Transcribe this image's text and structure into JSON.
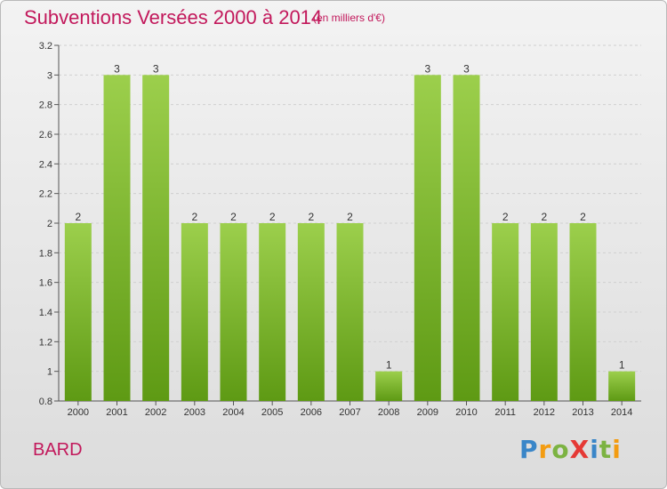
{
  "title": "Subventions Versées 2000 à 2014",
  "subtitle": "(en milliers d'€)",
  "place": "BARD",
  "logo": {
    "text": "ProXiti",
    "letters": [
      {
        "ch": "P",
        "color": "#3a86c8"
      },
      {
        "ch": "r",
        "color": "#f39c12"
      },
      {
        "ch": "o",
        "color": "#7cb342"
      },
      {
        "ch": "X",
        "color": "#e53935"
      },
      {
        "ch": "i",
        "color": "#3a86c8"
      },
      {
        "ch": "t",
        "color": "#7cb342"
      },
      {
        "ch": "i",
        "color": "#f39c12"
      }
    ]
  },
  "colors": {
    "title": "#c2185b",
    "bar_light": "#9ccf4c",
    "bar_dark": "#5e9a14",
    "grid": "#cfcfcf",
    "axis_text": "#333333"
  },
  "chart_data": {
    "type": "bar",
    "title": "Subventions Versées 2000 à 2014",
    "xlabel": "",
    "ylabel": "",
    "categories": [
      "2000",
      "2001",
      "2002",
      "2003",
      "2004",
      "2005",
      "2006",
      "2007",
      "2008",
      "2009",
      "2010",
      "2011",
      "2012",
      "2013",
      "2014"
    ],
    "values": [
      2,
      3,
      3,
      2,
      2,
      2,
      2,
      2,
      1,
      3,
      3,
      2,
      2,
      2,
      1
    ],
    "data_labels": [
      "2",
      "3",
      "3",
      "2",
      "2",
      "2",
      "2",
      "2",
      "1",
      "3",
      "3",
      "2",
      "2",
      "2",
      "1"
    ],
    "ylim": [
      0.8,
      3.2
    ],
    "yticks": [
      0.8,
      1,
      1.2,
      1.4,
      1.6,
      1.8,
      2,
      2.2,
      2.4,
      2.6,
      2.8,
      3,
      3.2
    ],
    "ytick_labels": [
      "0.8",
      "1",
      "1.2",
      "1.4",
      "1.6",
      "1.8",
      "2",
      "2.2",
      "2.4",
      "2.6",
      "2.8",
      "3",
      "3.2"
    ],
    "grid": "horizontal-dashed"
  }
}
